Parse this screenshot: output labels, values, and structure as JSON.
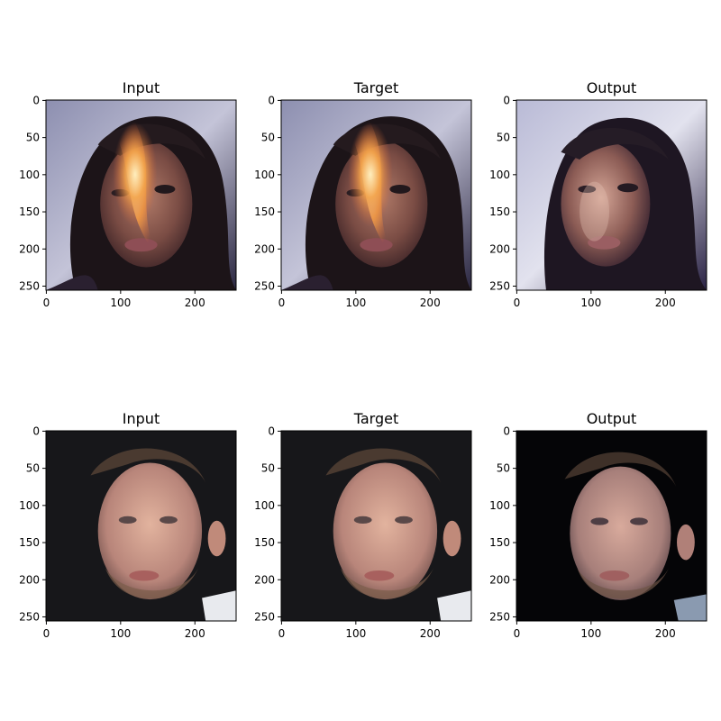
{
  "figure": {
    "rows": [
      {
        "panels": [
          {
            "title": "Input"
          },
          {
            "title": "Target"
          },
          {
            "title": "Output"
          }
        ]
      },
      {
        "panels": [
          {
            "title": "Input"
          },
          {
            "title": "Target"
          },
          {
            "title": "Output"
          }
        ]
      }
    ],
    "axes": {
      "x_ticks": [
        0,
        100,
        200
      ],
      "y_ticks": [
        0,
        50,
        100,
        150,
        200,
        250
      ],
      "extent": 256
    }
  }
}
